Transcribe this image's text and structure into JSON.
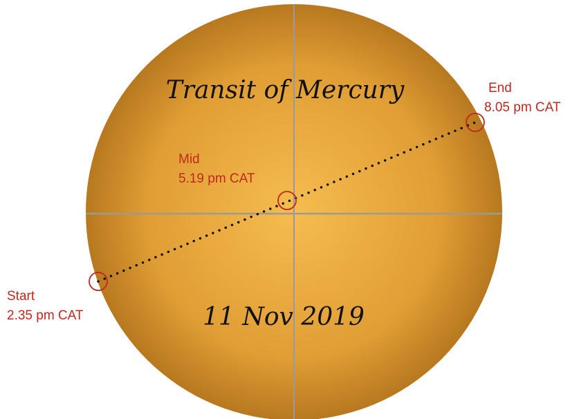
{
  "title": "Transit of Mercury",
  "date": "11 Nov  2019",
  "points": [
    {
      "label": "Start",
      "time": "2.35 pm CAT"
    },
    {
      "label": "Mid",
      "time": "5.19 pm CAT"
    },
    {
      "label": "End",
      "time": "8.05 pm CAT"
    }
  ]
}
